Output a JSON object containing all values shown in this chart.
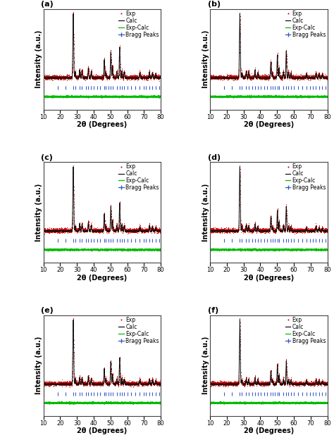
{
  "panels": [
    "(a)",
    "(b)",
    "(c)",
    "(d)",
    "(e)",
    "(f)"
  ],
  "xlabel": "2θ (Degrees)",
  "ylabel": "Intensity (a.u.)",
  "xlim": [
    10,
    80
  ],
  "xrd_peaks": [
    27.8,
    29.0,
    31.6,
    33.0,
    36.8,
    38.5,
    46.3,
    47.2,
    50.2,
    51.2,
    53.8,
    55.5,
    56.8,
    58.2,
    67.5,
    73.2,
    75.0,
    77.0
  ],
  "peak_widths": [
    0.25,
    0.22,
    0.22,
    0.22,
    0.22,
    0.22,
    0.22,
    0.22,
    0.22,
    0.22,
    0.22,
    0.22,
    0.22,
    0.22,
    0.22,
    0.22,
    0.22,
    0.22
  ],
  "bragg_positions": [
    18.5,
    23.0,
    27.8,
    29.0,
    31.6,
    33.0,
    35.2,
    36.8,
    38.5,
    40.1,
    42.3,
    44.0,
    46.3,
    47.2,
    48.8,
    50.2,
    51.2,
    53.8,
    55.5,
    56.8,
    58.2,
    60.0,
    62.5,
    65.0,
    67.5,
    69.8,
    71.2,
    73.2,
    75.0,
    77.0,
    79.0
  ],
  "peak_heights_a": [
    1.0,
    0.09,
    0.12,
    0.11,
    0.15,
    0.1,
    0.28,
    0.08,
    0.4,
    0.18,
    0.1,
    0.48,
    0.1,
    0.09,
    0.07,
    0.09,
    0.07,
    0.06
  ],
  "peak_heights_b": [
    1.0,
    0.07,
    0.1,
    0.09,
    0.12,
    0.08,
    0.25,
    0.07,
    0.36,
    0.15,
    0.09,
    0.42,
    0.09,
    0.07,
    0.06,
    0.07,
    0.06,
    0.05
  ],
  "peak_heights_c": [
    1.0,
    0.08,
    0.11,
    0.1,
    0.13,
    0.09,
    0.26,
    0.07,
    0.38,
    0.16,
    0.09,
    0.44,
    0.09,
    0.08,
    0.06,
    0.08,
    0.06,
    0.05
  ],
  "peak_heights_d": [
    1.0,
    0.07,
    0.09,
    0.08,
    0.11,
    0.07,
    0.22,
    0.06,
    0.32,
    0.14,
    0.08,
    0.38,
    0.08,
    0.07,
    0.05,
    0.07,
    0.05,
    0.04
  ],
  "peak_heights_e": [
    1.0,
    0.08,
    0.1,
    0.09,
    0.12,
    0.08,
    0.24,
    0.07,
    0.35,
    0.15,
    0.08,
    0.41,
    0.09,
    0.07,
    0.06,
    0.07,
    0.06,
    0.05
  ],
  "peak_heights_f": [
    1.0,
    0.06,
    0.08,
    0.07,
    0.1,
    0.07,
    0.2,
    0.06,
    0.3,
    0.13,
    0.07,
    0.36,
    0.07,
    0.06,
    0.05,
    0.06,
    0.05,
    0.04
  ],
  "exp_color": "#cc0000",
  "calc_color": "#111111",
  "diff_color": "#00bb00",
  "bragg_color": "#3355cc",
  "bg_color": "#ffffff",
  "legend_fontsize": 5.5,
  "label_fontsize": 7,
  "tick_fontsize": 6,
  "panel_label_fontsize": 8
}
